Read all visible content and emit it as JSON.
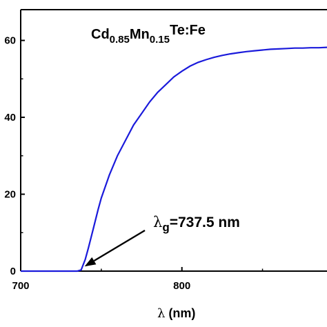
{
  "chart_data": {
    "type": "line",
    "title_parts": {
      "a": "Cd",
      "b": "0.85",
      "c": "Mn",
      "d": "0.15",
      "e": "Te:Fe"
    },
    "xlabel_symbol": "λ",
    "xlabel_unit": " (nm)",
    "ylabel": "",
    "xlim": [
      700,
      890
    ],
    "ylim": [
      0,
      68
    ],
    "x_ticks": [
      700,
      800
    ],
    "y_ticks": [
      0,
      20,
      40,
      60
    ],
    "y_tick_labels": [
      "0",
      "20",
      "40",
      "60"
    ],
    "grid": false,
    "series": [
      {
        "color": "#1a1adb",
        "x": [
          700,
          705,
          710,
          715,
          720,
          725,
          730,
          735,
          737.5,
          740,
          742,
          745,
          748,
          750,
          755,
          760,
          765,
          770,
          775,
          780,
          785,
          790,
          795,
          800,
          805,
          810,
          815,
          820,
          825,
          830,
          835,
          840,
          845,
          850,
          855,
          860,
          865,
          870,
          875,
          880,
          885,
          890
        ],
        "y": [
          0,
          0,
          0,
          0,
          0,
          0,
          0,
          0,
          0.3,
          3,
          6,
          11,
          16,
          19,
          25,
          30,
          34,
          38,
          41,
          44,
          46.5,
          48.5,
          50.5,
          52,
          53.3,
          54.3,
          55,
          55.6,
          56.1,
          56.5,
          56.8,
          57.1,
          57.3,
          57.5,
          57.7,
          57.8,
          57.9,
          58,
          58,
          58.1,
          58.1,
          58.2
        ]
      }
    ],
    "annotation": {
      "symbol": "λ",
      "sub": "g",
      "text": "=737.5 nm",
      "arrow_to_x": 737.5,
      "arrow_to_y": 0.5
    }
  }
}
